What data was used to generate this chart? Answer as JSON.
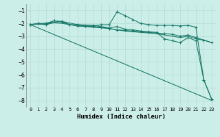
{
  "xlabel": "Humidex (Indice chaleur)",
  "ylabel": "",
  "bg_color": "#cceee8",
  "grid_color": "#b8ddd8",
  "line_color": "#1a7a6a",
  "xlim": [
    -0.5,
    23.5
  ],
  "ylim": [
    -8.5,
    -0.5
  ],
  "yticks": [
    -8,
    -7,
    -6,
    -5,
    -4,
    -3,
    -2,
    -1
  ],
  "xticks": [
    0,
    1,
    2,
    3,
    4,
    5,
    6,
    7,
    8,
    9,
    10,
    11,
    12,
    13,
    14,
    15,
    16,
    17,
    18,
    19,
    20,
    21,
    22,
    23
  ],
  "lines": [
    {
      "x": [
        0,
        1,
        2,
        3,
        4,
        5,
        6,
        7,
        8,
        9,
        10,
        11,
        12,
        13,
        14,
        15,
        16,
        17,
        18,
        19,
        20,
        21,
        22,
        23
      ],
      "y": [
        -2.1,
        -2.0,
        -2.0,
        -1.8,
        -1.85,
        -2.1,
        -2.1,
        -2.2,
        -2.2,
        -2.1,
        -2.1,
        -1.1,
        -1.4,
        -1.7,
        -2.0,
        -2.1,
        -2.15,
        -2.15,
        -2.15,
        -2.2,
        -2.15,
        -2.3,
        -6.4,
        -7.9
      ],
      "marker": "+"
    },
    {
      "x": [
        0,
        1,
        2,
        3,
        4,
        5,
        6,
        7,
        8,
        9,
        10,
        11,
        12,
        13,
        14,
        15,
        16,
        17,
        18,
        19,
        20,
        21,
        22,
        23
      ],
      "y": [
        -2.1,
        -2.0,
        -2.1,
        -1.8,
        -1.9,
        -2.1,
        -2.2,
        -2.2,
        -2.25,
        -2.3,
        -2.4,
        -2.5,
        -2.55,
        -2.6,
        -2.65,
        -2.7,
        -2.75,
        -2.8,
        -2.85,
        -3.0,
        -2.9,
        -3.1,
        -3.3,
        -3.5
      ],
      "marker": "+"
    },
    {
      "x": [
        0,
        1,
        2,
        3,
        4,
        5,
        6,
        7,
        8,
        9,
        10,
        11,
        12,
        13,
        14,
        15,
        16,
        17,
        18,
        19,
        20,
        21,
        22,
        23
      ],
      "y": [
        -2.1,
        -2.05,
        -2.1,
        -1.95,
        -2.0,
        -2.1,
        -2.2,
        -2.25,
        -2.3,
        -2.35,
        -2.4,
        -2.5,
        -2.6,
        -2.65,
        -2.7,
        -2.75,
        -2.8,
        -2.9,
        -3.0,
        -3.1,
        -3.0,
        -3.2,
        -3.3,
        -3.5
      ],
      "marker": null
    },
    {
      "x": [
        0,
        23
      ],
      "y": [
        -2.1,
        -8.0
      ],
      "marker": null
    },
    {
      "x": [
        0,
        2,
        4,
        6,
        8,
        10,
        11,
        12,
        13,
        14,
        15,
        16,
        17,
        18,
        19,
        20,
        21,
        22,
        23
      ],
      "y": [
        -2.1,
        -2.0,
        -1.85,
        -2.1,
        -2.15,
        -2.35,
        -2.25,
        -2.45,
        -2.5,
        -2.6,
        -2.65,
        -2.7,
        -3.2,
        -3.35,
        -3.5,
        -3.1,
        -3.35,
        -6.4,
        -7.9
      ],
      "marker": "+"
    }
  ]
}
